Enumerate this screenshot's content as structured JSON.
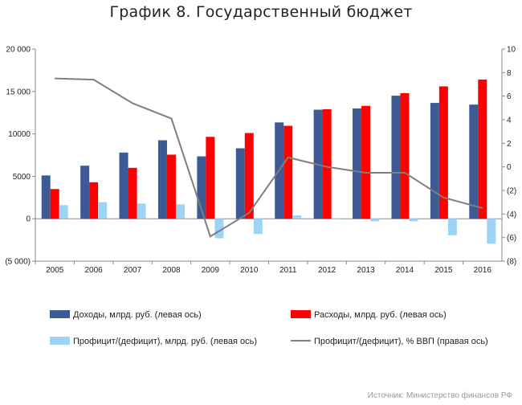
{
  "title": "График 8. Государственный бюджет",
  "source": "Источник: Министерство финансов РФ",
  "chart_data": {
    "type": "bar",
    "categories": [
      "2005",
      "2006",
      "2007",
      "2008",
      "2009",
      "2010",
      "2011",
      "2012",
      "2013",
      "2014",
      "2015",
      "2016"
    ],
    "left_axis": {
      "ylim": [
        -5000,
        20000
      ],
      "ticks": [
        -5000,
        0,
        5000,
        10000,
        15000,
        20000
      ],
      "tick_labels": [
        "(5 000)",
        "0",
        "5000",
        "10000",
        "15 000",
        "20 000"
      ]
    },
    "right_axis": {
      "ylim": [
        -8,
        10
      ],
      "ticks": [
        -8,
        -6,
        -4,
        -2,
        0,
        2,
        4,
        6,
        8,
        10
      ],
      "tick_labels": [
        "(8)",
        "(6)",
        "(4)",
        "(2)",
        "0",
        "2",
        "4",
        "6",
        "8",
        "10"
      ]
    },
    "grid": false,
    "legend_position": "bottom",
    "series": [
      {
        "name": "Доходы, млрд. руб. (левая ось)",
        "type": "bar",
        "axis": "left",
        "color": "#3d5a94",
        "values": [
          5100,
          6250,
          7800,
          9250,
          7350,
          8300,
          11350,
          12850,
          13000,
          14500,
          13650,
          13450
        ]
      },
      {
        "name": "Расходы, млрд. руб. (левая ось)",
        "type": "bar",
        "axis": "left",
        "color": "#ff0000",
        "values": [
          3500,
          4300,
          6000,
          7550,
          9650,
          10100,
          10950,
          12900,
          13300,
          14800,
          15600,
          16400
        ]
      },
      {
        "name": "Профицит/(дефицит),  млрд. руб. (левая ось)",
        "type": "bar",
        "axis": "left",
        "color": "#9dd4f5",
        "values": [
          1600,
          1950,
          1800,
          1700,
          -2300,
          -1800,
          400,
          -50,
          -300,
          -300,
          -1950,
          -2950
        ]
      },
      {
        "name": "Профицит/(дефицит),  % ВВП (правая ось)",
        "type": "line",
        "axis": "right",
        "color": "#7f7f7f",
        "values": [
          7.5,
          7.4,
          5.4,
          4.1,
          -5.9,
          -3.9,
          0.8,
          0.0,
          -0.5,
          -0.5,
          -2.6,
          -3.5
        ]
      }
    ]
  }
}
